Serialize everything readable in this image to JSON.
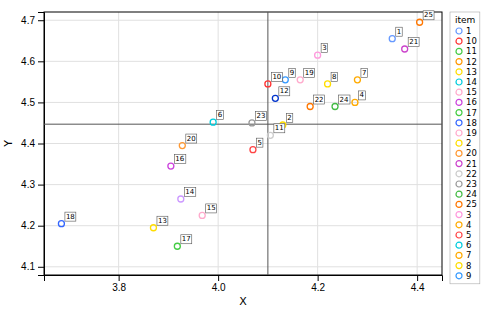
{
  "chart_data": {
    "type": "scatter",
    "x": [
      4.35,
      4.13,
      4.2,
      4.275,
      4.07,
      3.99,
      4.28,
      4.22,
      4.135,
      4.1,
      4.105,
      4.115,
      3.87,
      3.925,
      3.968,
      3.905,
      3.918,
      3.685,
      4.165,
      3.928,
      4.375,
      4.185,
      4.068,
      4.235,
      4.405
    ],
    "values": [
      4.655,
      4.445,
      4.615,
      4.5,
      4.385,
      4.452,
      4.555,
      4.545,
      4.555,
      4.545,
      4.42,
      4.51,
      4.195,
      4.265,
      4.225,
      4.345,
      4.15,
      4.205,
      4.555,
      4.395,
      4.63,
      4.49,
      4.45,
      4.49,
      4.695
    ],
    "labels": [
      "1",
      "2",
      "3",
      "4",
      "5",
      "6",
      "7",
      "8",
      "9",
      "10",
      "11",
      "12",
      "13",
      "14",
      "15",
      "16",
      "17",
      "18",
      "19",
      "20",
      "21",
      "22",
      "23",
      "24",
      "25"
    ],
    "colors": [
      "#6699ff",
      "#ffdd00",
      "#ff99dd",
      "#ffaa00",
      "#ff4444",
      "#00ccdd",
      "#ffaa00",
      "#ffdd00",
      "#3399ff",
      "#ff3333",
      "#cccccc",
      "#0033cc",
      "#ffdd00",
      "#cc99ff",
      "#ffaacc",
      "#cc44dd",
      "#44cc44",
      "#3366ff",
      "#ffaacc",
      "#ff9933",
      "#cc44cc",
      "#ff7700",
      "#999999",
      "#44bb44",
      "#ff7700"
    ],
    "marker": "circle",
    "hline": 4.447,
    "vline": 4.1,
    "xlim": [
      3.65,
      4.45
    ],
    "ylim": [
      4.08,
      4.72
    ],
    "xticks": [
      3.8,
      {
        "value": 4.0,
        "label": "4.0"
      },
      4.2,
      4.4
    ],
    "yticks": [
      4.1,
      4.2,
      4.3,
      4.4,
      4.5,
      4.6,
      4.7
    ],
    "xlabel": "X",
    "ylabel": "Y",
    "grid": true,
    "legend": "right",
    "legend_title": "item",
    "legend_entries": [
      {
        "name": "1",
        "color": "#6699ff"
      },
      {
        "name": "10",
        "color": "#ff3333"
      },
      {
        "name": "11",
        "color": "#44cc44"
      },
      {
        "name": "12",
        "color": "#ff9900"
      },
      {
        "name": "13",
        "color": "#ffdd00"
      },
      {
        "name": "14",
        "color": "#00ccdd"
      },
      {
        "name": "15",
        "color": "#ffaacc"
      },
      {
        "name": "16",
        "color": "#cc44dd"
      },
      {
        "name": "17",
        "color": "#44cc44"
      },
      {
        "name": "18",
        "color": "#3366ff"
      },
      {
        "name": "19",
        "color": "#ffaacc"
      },
      {
        "name": "2",
        "color": "#ffdd00"
      },
      {
        "name": "20",
        "color": "#ff9933"
      },
      {
        "name": "21",
        "color": "#cc44cc"
      },
      {
        "name": "22",
        "color": "#cccccc"
      },
      {
        "name": "23",
        "color": "#999999"
      },
      {
        "name": "24",
        "color": "#44bb44"
      },
      {
        "name": "25",
        "color": "#ff7700"
      },
      {
        "name": "3",
        "color": "#ff99dd"
      },
      {
        "name": "4",
        "color": "#ffaa00"
      },
      {
        "name": "5",
        "color": "#ff4444"
      },
      {
        "name": "6",
        "color": "#00ccdd"
      },
      {
        "name": "7",
        "color": "#ffaa00"
      },
      {
        "name": "8",
        "color": "#ffdd00"
      },
      {
        "name": "9",
        "color": "#3399ff"
      }
    ]
  }
}
